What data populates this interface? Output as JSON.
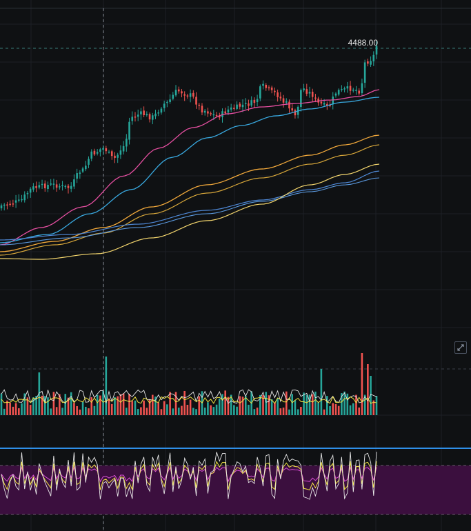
{
  "price_label": "4488.00",
  "colors": {
    "up": "#26a69a",
    "down": "#ef5350",
    "ma_pink": "#e64fa1",
    "ma_cyan": "#39a9e0",
    "ma_orange": "#f2a93b",
    "ma_yellow": "#f5d76e",
    "ma_blue": "#4e88d6",
    "vol_ma_yellow": "#f0e442",
    "vol_ma_white": "#e6e6e6",
    "rsi_upper_line": "#2f8fe8",
    "rsi_band": "#3b0f3e",
    "rsi_pink": "#d94fd5",
    "rsi_yellow": "#f0e442",
    "rsi_white": "#e8e8e8"
  },
  "icons": {
    "scale_button": "fullscreen-corner-icon"
  },
  "chart_data": {
    "type": "candlestick",
    "last_price": 4488.0,
    "candles_count": 130,
    "grid": true,
    "crosshair": "vertical"
  }
}
